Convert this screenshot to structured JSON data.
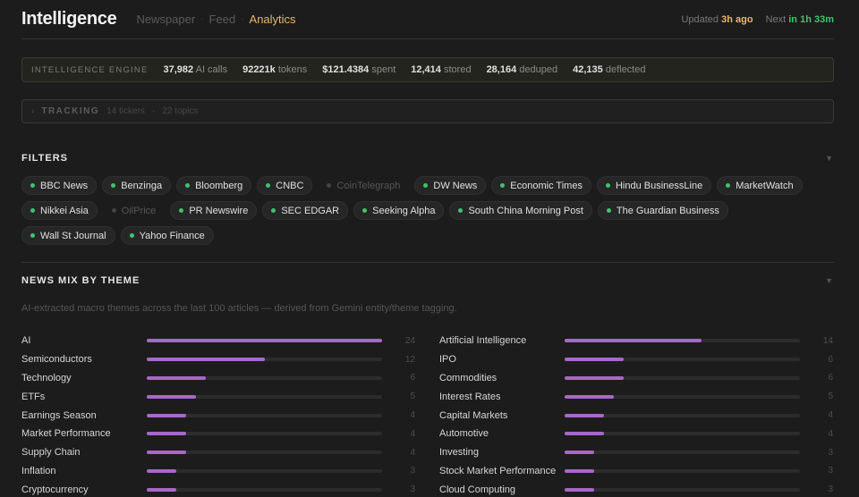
{
  "header": {
    "brand": "Intelligence",
    "tabs": [
      "Newspaper",
      "Feed",
      "Analytics"
    ],
    "updated_label": "Updated",
    "updated_value": "3h ago",
    "next_label": "Next",
    "next_value": "in 1h 33m"
  },
  "engine": {
    "label": "INTELLIGENCE ENGINE",
    "stats": [
      {
        "value": "37,982",
        "unit": "AI calls"
      },
      {
        "value": "92221k",
        "unit": "tokens"
      },
      {
        "value": "$121.4384",
        "unit": "spent"
      },
      {
        "value": "12,414",
        "unit": "stored"
      },
      {
        "value": "28,164",
        "unit": "deduped"
      },
      {
        "value": "42,135",
        "unit": "deflected"
      }
    ]
  },
  "tracking": {
    "caret": "›",
    "label": "TRACKING",
    "tickers": "14 tickers",
    "separator": "·",
    "topics": "22 topics"
  },
  "filters": {
    "title": "FILTERS",
    "caret": "▼",
    "chips": [
      {
        "label": "BBC News",
        "active": true
      },
      {
        "label": "Benzinga",
        "active": true
      },
      {
        "label": "Bloomberg",
        "active": true
      },
      {
        "label": "CNBC",
        "active": true
      },
      {
        "label": "CoinTelegraph",
        "active": false
      },
      {
        "label": "DW News",
        "active": true
      },
      {
        "label": "Economic Times",
        "active": true
      },
      {
        "label": "Hindu BusinessLine",
        "active": true
      },
      {
        "label": "MarketWatch",
        "active": true
      },
      {
        "label": "Nikkei Asia",
        "active": true
      },
      {
        "label": "OilPrice",
        "active": false
      },
      {
        "label": "PR Newswire",
        "active": true
      },
      {
        "label": "SEC EDGAR",
        "active": true
      },
      {
        "label": "Seeking Alpha",
        "active": true
      },
      {
        "label": "South China Morning Post",
        "active": true
      },
      {
        "label": "The Guardian Business",
        "active": true
      },
      {
        "label": "Wall St Journal",
        "active": true
      },
      {
        "label": "Yahoo Finance",
        "active": true
      }
    ]
  },
  "themes": {
    "title": "NEWS MIX BY THEME",
    "caret": "▼",
    "description": "AI-extracted macro themes across the last 100 articles — derived from Gemini entity/theme tagging.",
    "max": 24,
    "left": [
      {
        "name": "AI",
        "count": 24
      },
      {
        "name": "Semiconductors",
        "count": 12
      },
      {
        "name": "Technology",
        "count": 6
      },
      {
        "name": "ETFs",
        "count": 5
      },
      {
        "name": "Earnings Season",
        "count": 4
      },
      {
        "name": "Market Performance",
        "count": 4
      },
      {
        "name": "Supply Chain",
        "count": 4
      },
      {
        "name": "Inflation",
        "count": 3
      },
      {
        "name": "Cryptocurrency",
        "count": 3
      }
    ],
    "right": [
      {
        "name": "Artificial Intelligence",
        "count": 14
      },
      {
        "name": "IPO",
        "count": 6
      },
      {
        "name": "Commodities",
        "count": 6
      },
      {
        "name": "Interest Rates",
        "count": 5
      },
      {
        "name": "Capital Markets",
        "count": 4
      },
      {
        "name": "Automotive",
        "count": 4
      },
      {
        "name": "Investing",
        "count": 3
      },
      {
        "name": "Stock Market Performance",
        "count": 3
      },
      {
        "name": "Cloud Computing",
        "count": 3
      }
    ],
    "bar_color": "#a868c8"
  }
}
